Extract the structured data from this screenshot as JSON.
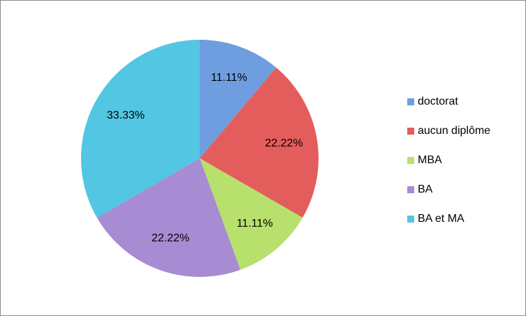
{
  "chart_data": {
    "type": "pie",
    "categories": [
      "doctorat",
      "aucun diplôme",
      "MBA",
      "BA",
      "BA et MA"
    ],
    "values": [
      11.11,
      22.22,
      11.11,
      22.22,
      33.33
    ],
    "value_labels": [
      "11.11%",
      "22.22%",
      "11.11%",
      "22.22%",
      "33.33%"
    ],
    "colors": [
      "#6f9ee0",
      "#e35d5d",
      "#b8e06c",
      "#a78bd3",
      "#52c6e2"
    ],
    "legend": "right"
  }
}
